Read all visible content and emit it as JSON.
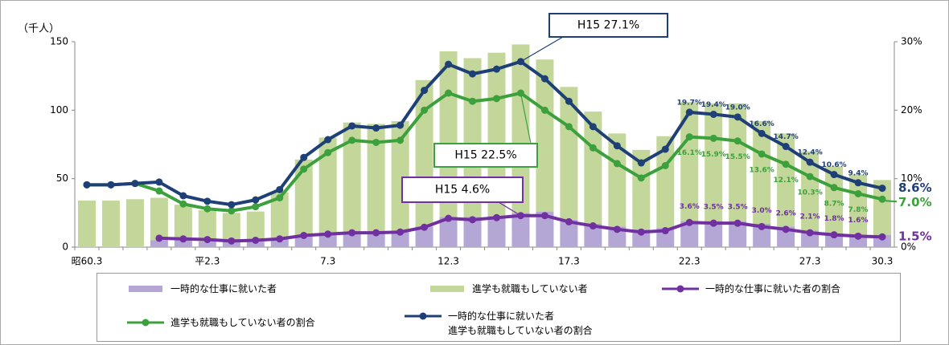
{
  "chart_data": {
    "type": "combo",
    "stacked": true,
    "y_label": "（千人）",
    "categories": [
      "昭60.3",
      null,
      null,
      null,
      null,
      "平2.3",
      null,
      null,
      null,
      null,
      "7.3",
      null,
      null,
      null,
      null,
      "12.3",
      null,
      null,
      null,
      null,
      "17.3",
      null,
      null,
      null,
      null,
      "22.3",
      null,
      null,
      null,
      null,
      "27.3",
      null,
      null,
      "30.3"
    ],
    "ylim": [
      0,
      150
    ],
    "yticks": [
      0,
      50,
      100,
      150
    ],
    "y2lim": [
      0,
      30
    ],
    "y2ticks": [
      {
        "value": 0,
        "label": "0%"
      },
      {
        "value": 10,
        "label": "10%"
      },
      {
        "value": 20,
        "label": "20%"
      },
      {
        "value": 30,
        "label": "30%"
      }
    ],
    "series": [
      {
        "name": "一時的な仕事に就いた者",
        "type": "bar",
        "color": "#b4a7d6",
        "values": [
          null,
          null,
          null,
          5,
          5,
          4,
          4,
          4,
          6,
          8,
          10,
          11,
          11,
          11,
          15,
          22,
          22,
          23,
          25,
          26,
          20,
          17,
          15,
          13,
          14,
          19,
          19,
          19,
          17,
          15,
          12,
          10,
          9,
          9
        ]
      },
      {
        "name": "進学も就職もしていない者",
        "type": "bar",
        "color": "#c4d79b",
        "values": [
          34,
          34,
          35,
          31,
          26,
          23,
          21,
          22,
          34,
          56,
          70,
          80,
          79,
          81,
          107,
          121,
          116,
          119,
          123,
          111,
          97,
          82,
          68,
          58,
          67,
          87,
          86,
          86,
          75,
          68,
          58,
          49,
          44,
          40
        ]
      },
      {
        "name": "一時的な仕事に就いた者の割合",
        "type": "line",
        "axis": "y2",
        "color": "#7030a0",
        "values": [
          null,
          null,
          null,
          1.3,
          1.2,
          1.1,
          0.9,
          1.0,
          1.2,
          1.7,
          1.9,
          2.1,
          2.1,
          2.2,
          2.9,
          4.2,
          4.0,
          4.3,
          4.6,
          4.6,
          3.7,
          3.1,
          2.6,
          2.2,
          2.4,
          3.6,
          3.5,
          3.5,
          3.0,
          2.6,
          2.1,
          1.8,
          1.6,
          1.5
        ],
        "value_labels": [
          null,
          null,
          null,
          null,
          null,
          null,
          null,
          null,
          null,
          null,
          null,
          null,
          null,
          null,
          null,
          null,
          null,
          null,
          null,
          null,
          null,
          null,
          null,
          null,
          null,
          "3.6%",
          "3.5%",
          "3.5%",
          "3.0%",
          "2.6%",
          "2.1%",
          "1.8%",
          "1.6%",
          "1.5%"
        ]
      },
      {
        "name": "進学も就職もしていない者の割合",
        "type": "line",
        "axis": "y2",
        "color": "#3ca03c",
        "values": [
          9.1,
          9.1,
          9.3,
          8.2,
          6.3,
          5.6,
          5.3,
          5.9,
          7.2,
          11.4,
          13.8,
          15.6,
          15.3,
          15.6,
          20.0,
          22.5,
          21.3,
          21.7,
          22.5,
          20.0,
          17.6,
          14.5,
          12.2,
          10.1,
          11.9,
          16.1,
          15.9,
          15.5,
          13.6,
          12.1,
          10.3,
          8.7,
          7.8,
          7.0
        ],
        "value_labels": [
          null,
          null,
          null,
          null,
          null,
          null,
          null,
          null,
          null,
          null,
          null,
          null,
          null,
          null,
          null,
          null,
          null,
          null,
          null,
          null,
          null,
          null,
          null,
          null,
          null,
          "16.1%",
          "15.9%",
          "15.5%",
          "13.6%",
          "12.1%",
          "10.3%",
          "8.7%",
          "7.8%",
          "7.0%"
        ]
      },
      {
        "name": "一時的な仕事に就いた者\n進学も就職もしていない者の割合",
        "type": "line",
        "axis": "y2",
        "color": "#1f3f77",
        "values": [
          9.1,
          9.1,
          9.3,
          9.5,
          7.5,
          6.7,
          6.2,
          6.9,
          8.4,
          13.1,
          15.7,
          17.7,
          17.4,
          17.8,
          22.9,
          26.7,
          25.3,
          26.0,
          27.1,
          24.6,
          21.3,
          17.6,
          14.8,
          12.3,
          14.3,
          19.7,
          19.4,
          19.0,
          16.6,
          14.7,
          12.4,
          10.6,
          9.4,
          8.6
        ],
        "value_labels": [
          null,
          null,
          null,
          null,
          null,
          null,
          null,
          null,
          null,
          null,
          null,
          null,
          null,
          null,
          null,
          null,
          null,
          null,
          null,
          null,
          null,
          null,
          null,
          null,
          null,
          "19.7%",
          "19.4%",
          "19.0%",
          "16.6%",
          "14.7%",
          "12.4%",
          "10.6%",
          "9.4%",
          "8.6%"
        ]
      }
    ],
    "annotations": [
      {
        "text": "H15  27.1%"
      },
      {
        "text": "H15  22.5%"
      },
      {
        "text": "H15  4.6%"
      }
    ]
  }
}
